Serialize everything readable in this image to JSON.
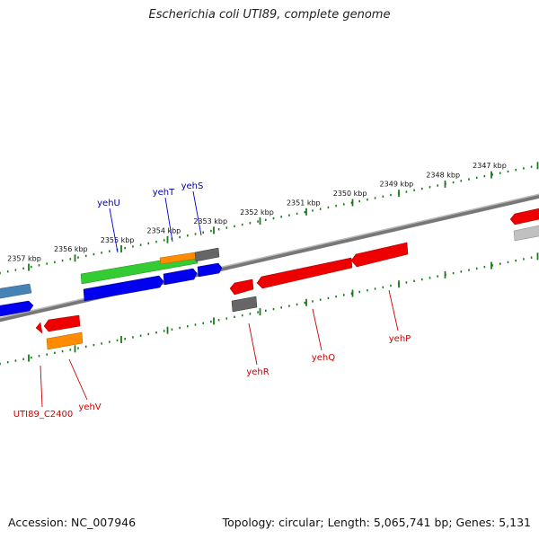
{
  "header": {
    "title": "Escherichia coli UTI89, complete genome"
  },
  "footer": {
    "accession": "Accession: NC_007946",
    "topology": "Topology: circular; Length: 5,065,741 bp; Genes: 5,131"
  },
  "scale": {
    "labels": [
      "2357 kbp",
      "2356 kbp",
      "2355 kbp",
      "2354 kbp",
      "2353 kbp",
      "2352 kbp",
      "2351 kbp",
      "2350 kbp",
      "2349 kbp",
      "2348 kbp",
      "2347 kbp"
    ]
  },
  "genes_upper": [
    "yehU",
    "yehT",
    "yehS"
  ],
  "genes_lower": [
    "UTI89_C2400",
    "yehV",
    "yehR",
    "yehQ",
    "yehP"
  ],
  "colors": {
    "forward_cds": "#0000ee",
    "reverse_cds": "#ee0000",
    "green_feature": "#33cc33",
    "orange_feature": "#ff8c00",
    "gray_feature": "#666666",
    "steelblue_feature": "#4682b4",
    "label_forward": "#0000aa",
    "label_reverse": "#cc0000",
    "ruler": "#1a7a1a"
  }
}
